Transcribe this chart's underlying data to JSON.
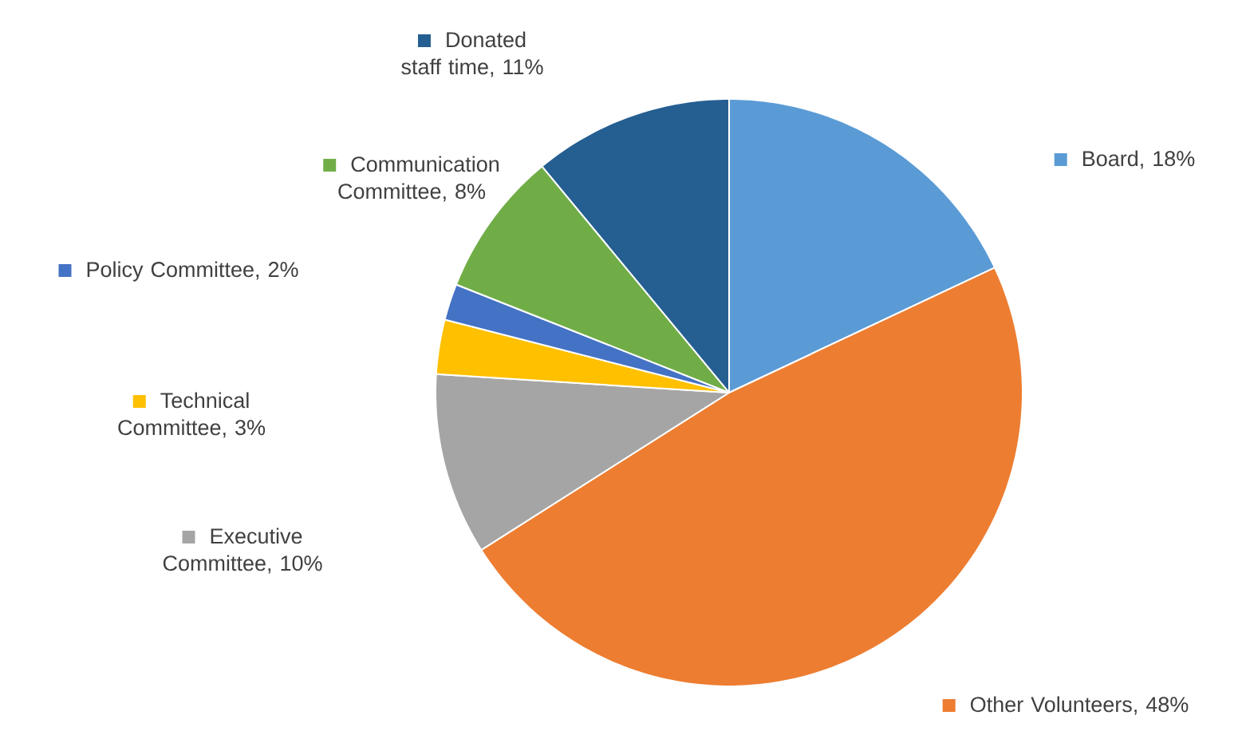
{
  "chart_data": {
    "type": "pie",
    "categories": [
      "Board",
      "Other Volunteers",
      "Executive Committee",
      "Technical Committee",
      "Policy Committee",
      "Communication Committee",
      "Donated staff time"
    ],
    "values": [
      18,
      48,
      10,
      3,
      2,
      8,
      11
    ],
    "value_labels": [
      ", 18%",
      ", 48%",
      ", 10%",
      ", 3%",
      ", 2%",
      ", 8%",
      ", 11%"
    ],
    "legend": "left",
    "colors": [
      "#5b9bd5",
      "#ed7d31",
      "#a5a5a5",
      "#ffc000",
      "#4472c4",
      "#70ad47",
      "#255e91"
    ]
  }
}
